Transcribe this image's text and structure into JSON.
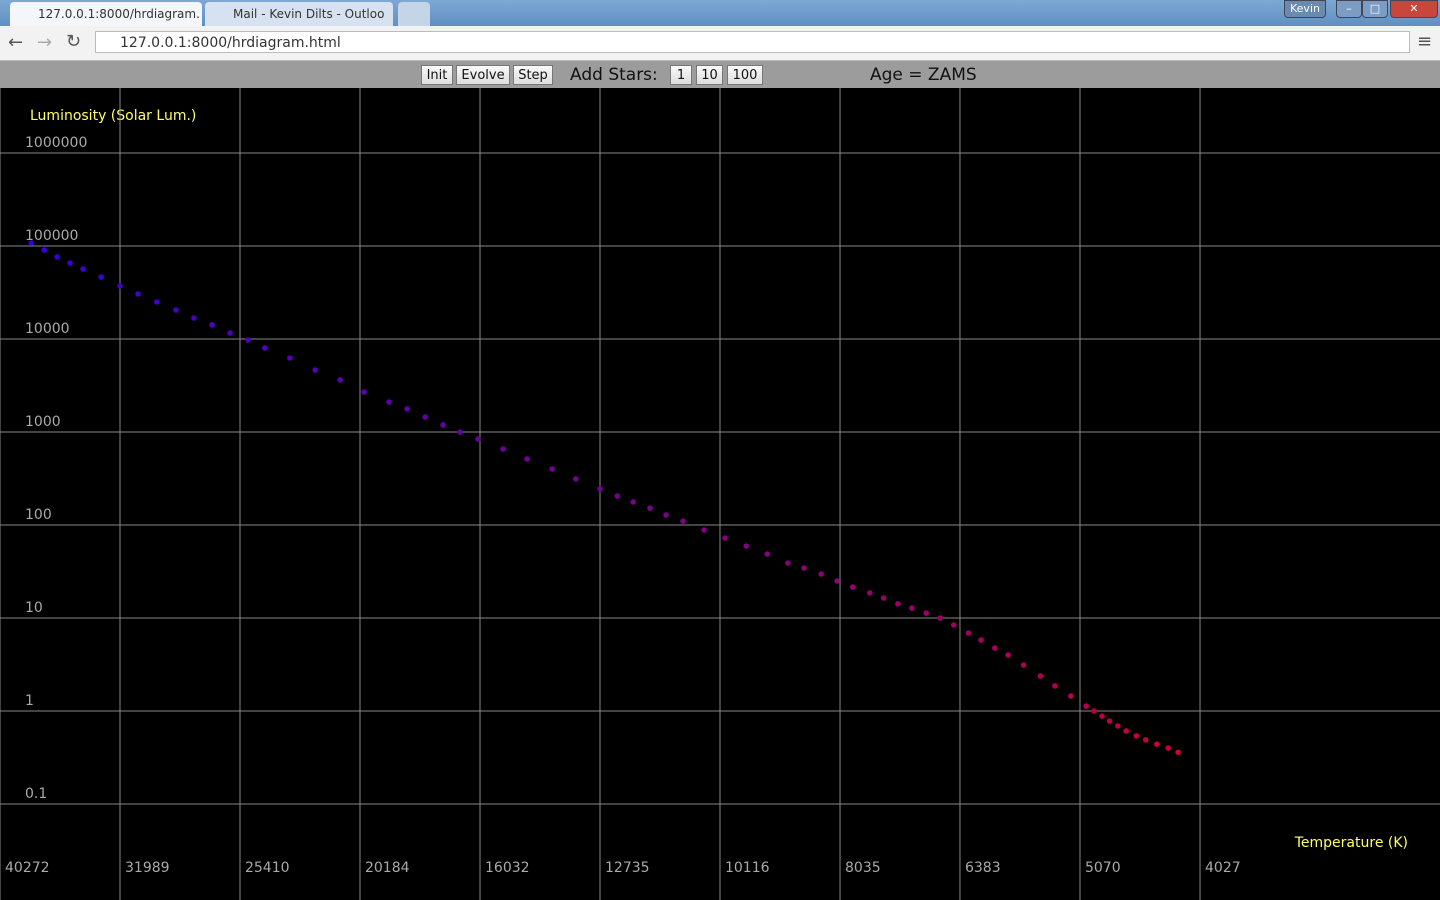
{
  "browser": {
    "tabs": [
      "127.0.0.1:8000/hrdiagram.",
      "Mail - Kevin Dilts - Outloo"
    ],
    "user": "Kevin",
    "url": "127.0.0.1:8000/hrdiagram.html"
  },
  "toolbar": {
    "buttons": [
      "Init",
      "Evolve",
      "Step"
    ],
    "add_stars_label": "Add Stars:",
    "add_buttons": [
      "1",
      "10",
      "100"
    ],
    "age_label": "Age = ZAMS"
  },
  "chart_data": {
    "type": "scatter",
    "y_label": "Luminosity (Solar Lum.)",
    "x_label": "Temperature (K)",
    "xlog": true,
    "ylog": true,
    "grid": true,
    "colors": [
      "#3300dd",
      "#cc0033"
    ],
    "xlim": [
      40272,
      2541
    ],
    "ylim": [
      0.00929,
      5000000
    ],
    "xticks": [
      40272,
      31989,
      25410,
      20184,
      16032,
      12735,
      10116,
      8035,
      6383,
      5070,
      4027
    ],
    "yticks": [
      1000000,
      100000,
      10000,
      1000,
      100,
      10,
      1,
      0.1
    ],
    "x": [
      37930,
      36990,
      36090,
      35210,
      34340,
      33170,
      31990,
      30900,
      29800,
      28730,
      27760,
      26810,
      25900,
      25020,
      24230,
      23090,
      22000,
      20970,
      20030,
      19090,
      18440,
      17810,
      17210,
      16660,
      16090,
      15340,
      14650,
      13960,
      13340,
      12735,
      12320,
      11950,
      11570,
      11220,
      10860,
      10430,
      10020,
      9620,
      9240,
      8880,
      8610,
      8330,
      8080,
      7840,
      7590,
      7390,
      7190,
      7000,
      6810,
      6630,
      6460,
      6280,
      6130,
      5970,
      5820,
      5650,
      5470,
      5320,
      5160,
      5010,
      4935,
      4860,
      4790,
      4715,
      4640,
      4550,
      4470,
      4375,
      4280,
      4200
    ],
    "values": [
      107700,
      90600,
      76200,
      65600,
      56600,
      46400,
      37200,
      30500,
      25000,
      20500,
      16800,
      14200,
      11600,
      9750,
      8000,
      6250,
      4640,
      3630,
      2690,
      2100,
      1770,
      1450,
      1190,
      1000,
      841,
      656,
      513,
      400,
      313,
      244,
      205,
      177,
      152,
      128,
      110,
      88.3,
      72.4,
      59.4,
      48.8,
      39.0,
      34.5,
      29.7,
      25.0,
      21.5,
      18.6,
      16.4,
      14.2,
      12.8,
      11.3,
      10,
      8.41,
      6.9,
      5.8,
      4.75,
      4.0,
      3.12,
      2.38,
      1.86,
      1.45,
      1.13,
      1.0,
      0.88,
      0.78,
      0.69,
      0.61,
      0.54,
      0.49,
      0.44,
      0.4,
      0.36
    ]
  }
}
